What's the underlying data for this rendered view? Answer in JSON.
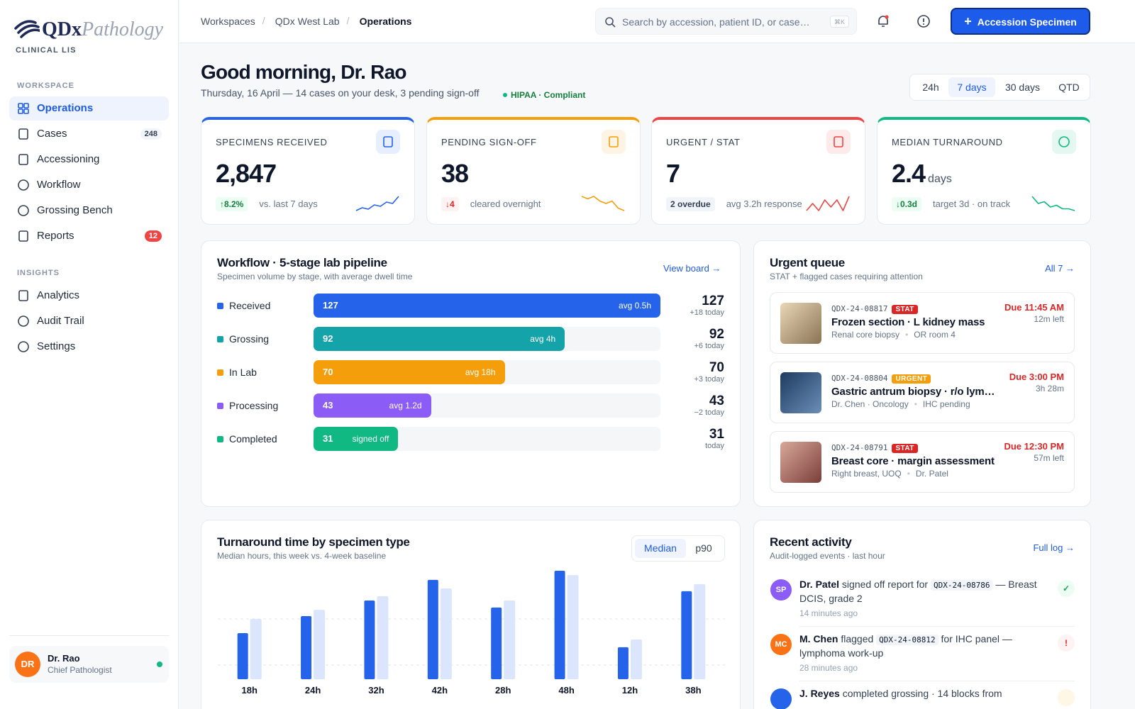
{
  "sidebar": {
    "logo": {
      "brand": "QDx",
      "brand2": "Pathology",
      "tagline": "CLINICAL LIS"
    },
    "sections": [
      {
        "title": "WORKSPACE",
        "items": [
          {
            "label": "Operations"
          },
          {
            "label": "Cases",
            "badge": "248"
          },
          {
            "label": "Accessioning"
          },
          {
            "label": "Workflow"
          },
          {
            "label": "Grossing Bench"
          },
          {
            "label": "Reports",
            "badge": "12"
          }
        ]
      },
      {
        "title": "INSIGHTS",
        "items": [
          {
            "label": "Analytics"
          },
          {
            "label": "Audit Trail"
          },
          {
            "label": "Settings"
          }
        ]
      }
    ],
    "user": {
      "initials": "DR",
      "name": "Dr. Rao",
      "role": "Chief Pathologist"
    }
  },
  "topbar": {
    "breadcrumbs": [
      "Workspaces",
      "QDx West Lab",
      "Operations"
    ],
    "search_placeholder": "Search by accession, patient ID, or case…",
    "shortcut": "⌘K",
    "primary_action": "Accession Specimen"
  },
  "greeting": {
    "title": "Good morning, Dr. Rao",
    "subtitle": "Thursday, 16 April — 14 cases on your desk, 3 pending sign-off",
    "compliance": "HIPAA · Compliant"
  },
  "range_tabs": [
    "24h",
    "7 days",
    "30 days",
    "QTD"
  ],
  "kpis": [
    {
      "label": "SPECIMENS RECEIVED",
      "value": "2,847",
      "delta": "↑8.2%",
      "note": "vs. last 7 days",
      "color": "#2563eb",
      "delta_color": "#15803d",
      "delta_bg": "#ecfdf3",
      "trend": [
        2,
        3,
        2.5,
        4,
        3.5,
        5,
        4.5,
        7
      ]
    },
    {
      "label": "PENDING SIGN-OFF",
      "value": "38",
      "delta": "↓4",
      "note": "cleared overnight",
      "color": "#f59e0b",
      "delta_color": "#dc2626",
      "delta_bg": "#fef2f2",
      "trend": [
        6,
        5.5,
        6,
        5,
        4.5,
        5,
        3.5,
        3
      ]
    },
    {
      "label": "URGENT / STAT",
      "value": "7",
      "delta": "2 overdue",
      "note": "avg 3.2h response",
      "color": "#ef4444",
      "delta_color": "#334155",
      "delta_bg": "#f1f5f9",
      "trend": [
        3,
        5,
        3,
        6,
        4,
        6,
        3,
        7
      ]
    },
    {
      "label": "MEDIAN TURNAROUND",
      "value": "2.4",
      "unit": "days",
      "delta": "↓0.3d",
      "note": "target 3d · on track",
      "color": "#10b981",
      "delta_color": "#15803d",
      "delta_bg": "#ecfdf3",
      "trend": [
        7,
        5,
        5.5,
        4,
        4.5,
        3.5,
        3.5,
        3
      ]
    }
  ],
  "workflow": {
    "title": "Workflow · 5-stage lab pipeline",
    "subtitle": "Specimen volume by stage, with average dwell time",
    "link": "View board →",
    "xlim": [
      0,
      127
    ],
    "stages": [
      {
        "name": "Received",
        "value": 127,
        "avg": "avg 0.5h",
        "today": "+18 today",
        "color": "#2563eb"
      },
      {
        "name": "Grossing",
        "value": 92,
        "avg": "avg 4h",
        "today": "+6 today",
        "color": "#14a3a8"
      },
      {
        "name": "In Lab",
        "value": 70,
        "avg": "avg 18h",
        "today": "+3 today",
        "color": "#f59e0b"
      },
      {
        "name": "Processing",
        "value": 43,
        "avg": "avg 1.2d",
        "today": "−2 today",
        "color": "#8b5cf6"
      },
      {
        "name": "Completed",
        "value": 31,
        "avg": "signed off",
        "today": "today",
        "color": "#10b981"
      }
    ]
  },
  "urgent": {
    "title": "Urgent queue",
    "subtitle": "STAT + flagged cases requiring attention",
    "link": "All 7 →",
    "cases": [
      {
        "id": "QDX-24-08817",
        "flag": "STAT",
        "flag_color": "#dc2626",
        "title": "Frozen section · L kidney mass",
        "meta": [
          "Renal core biopsy",
          "OR room 4"
        ],
        "due": "Due 11:45 AM",
        "left": "12m left"
      },
      {
        "id": "QDX-24-08804",
        "flag": "URGENT",
        "flag_color": "#f59e0b",
        "title": "Gastric antrum biopsy · r/o lymphoma",
        "meta": [
          "Dr. Chen · Oncology",
          "IHC pending"
        ],
        "due": "Due 3:00 PM",
        "left": "3h 28m"
      },
      {
        "id": "QDX-24-08791",
        "flag": "STAT",
        "flag_color": "#dc2626",
        "title": "Breast core · margin assessment",
        "meta": [
          "Right breast, UOQ",
          "Dr. Patel"
        ],
        "due": "Due 12:30 PM",
        "left": "57m left"
      }
    ]
  },
  "turnaround": {
    "type": "bar",
    "title": "Turnaround time by specimen type",
    "subtitle": "Median hours, this week vs. 4-week baseline",
    "toggle": [
      "Median",
      "p90"
    ],
    "categories": [
      "18h",
      "24h",
      "32h",
      "42h",
      "28h",
      "48h",
      "12h",
      "38h"
    ],
    "ylim": [
      0,
      50
    ],
    "series": [
      {
        "color": "#2563eb",
        "values": [
          20.3,
          27.8,
          34.7,
          43.8,
          31.6,
          47.8,
          14.1,
          38.8
        ]
      },
      {
        "color": "#dbe6fd",
        "values": [
          26.6,
          30.6,
          36.6,
          40,
          34.7,
          45.9,
          17.5,
          41.9
        ]
      }
    ]
  },
  "activity": {
    "title": "Recent activity",
    "subtitle": "Audit-logged events · last hour",
    "link": "Full log →",
    "events": [
      {
        "initials": "SP",
        "color": "#8b5cf6",
        "actor": "Dr. Patel",
        "text": "signed off report for",
        "code": "QDX-24-08786",
        "rest": "— Breast DCIS, grade 2",
        "time": "14 minutes ago",
        "status": "✓",
        "status_color": "#16a34a",
        "status_bg": "#ecfdf3"
      },
      {
        "initials": "MC",
        "color": "#f97316",
        "actor": "M. Chen",
        "text": "flagged",
        "code": "QDX-24-08812",
        "rest": "for IHC panel — lymphoma work-up",
        "time": "28 minutes ago",
        "status": "!",
        "status_color": "#dc2626",
        "status_bg": "#fef2f2"
      },
      {
        "color": "#2563eb",
        "actor": "J. Reyes",
        "text": "completed grossing · 14 blocks from",
        "status_bg": "#fef7e6"
      }
    ]
  }
}
